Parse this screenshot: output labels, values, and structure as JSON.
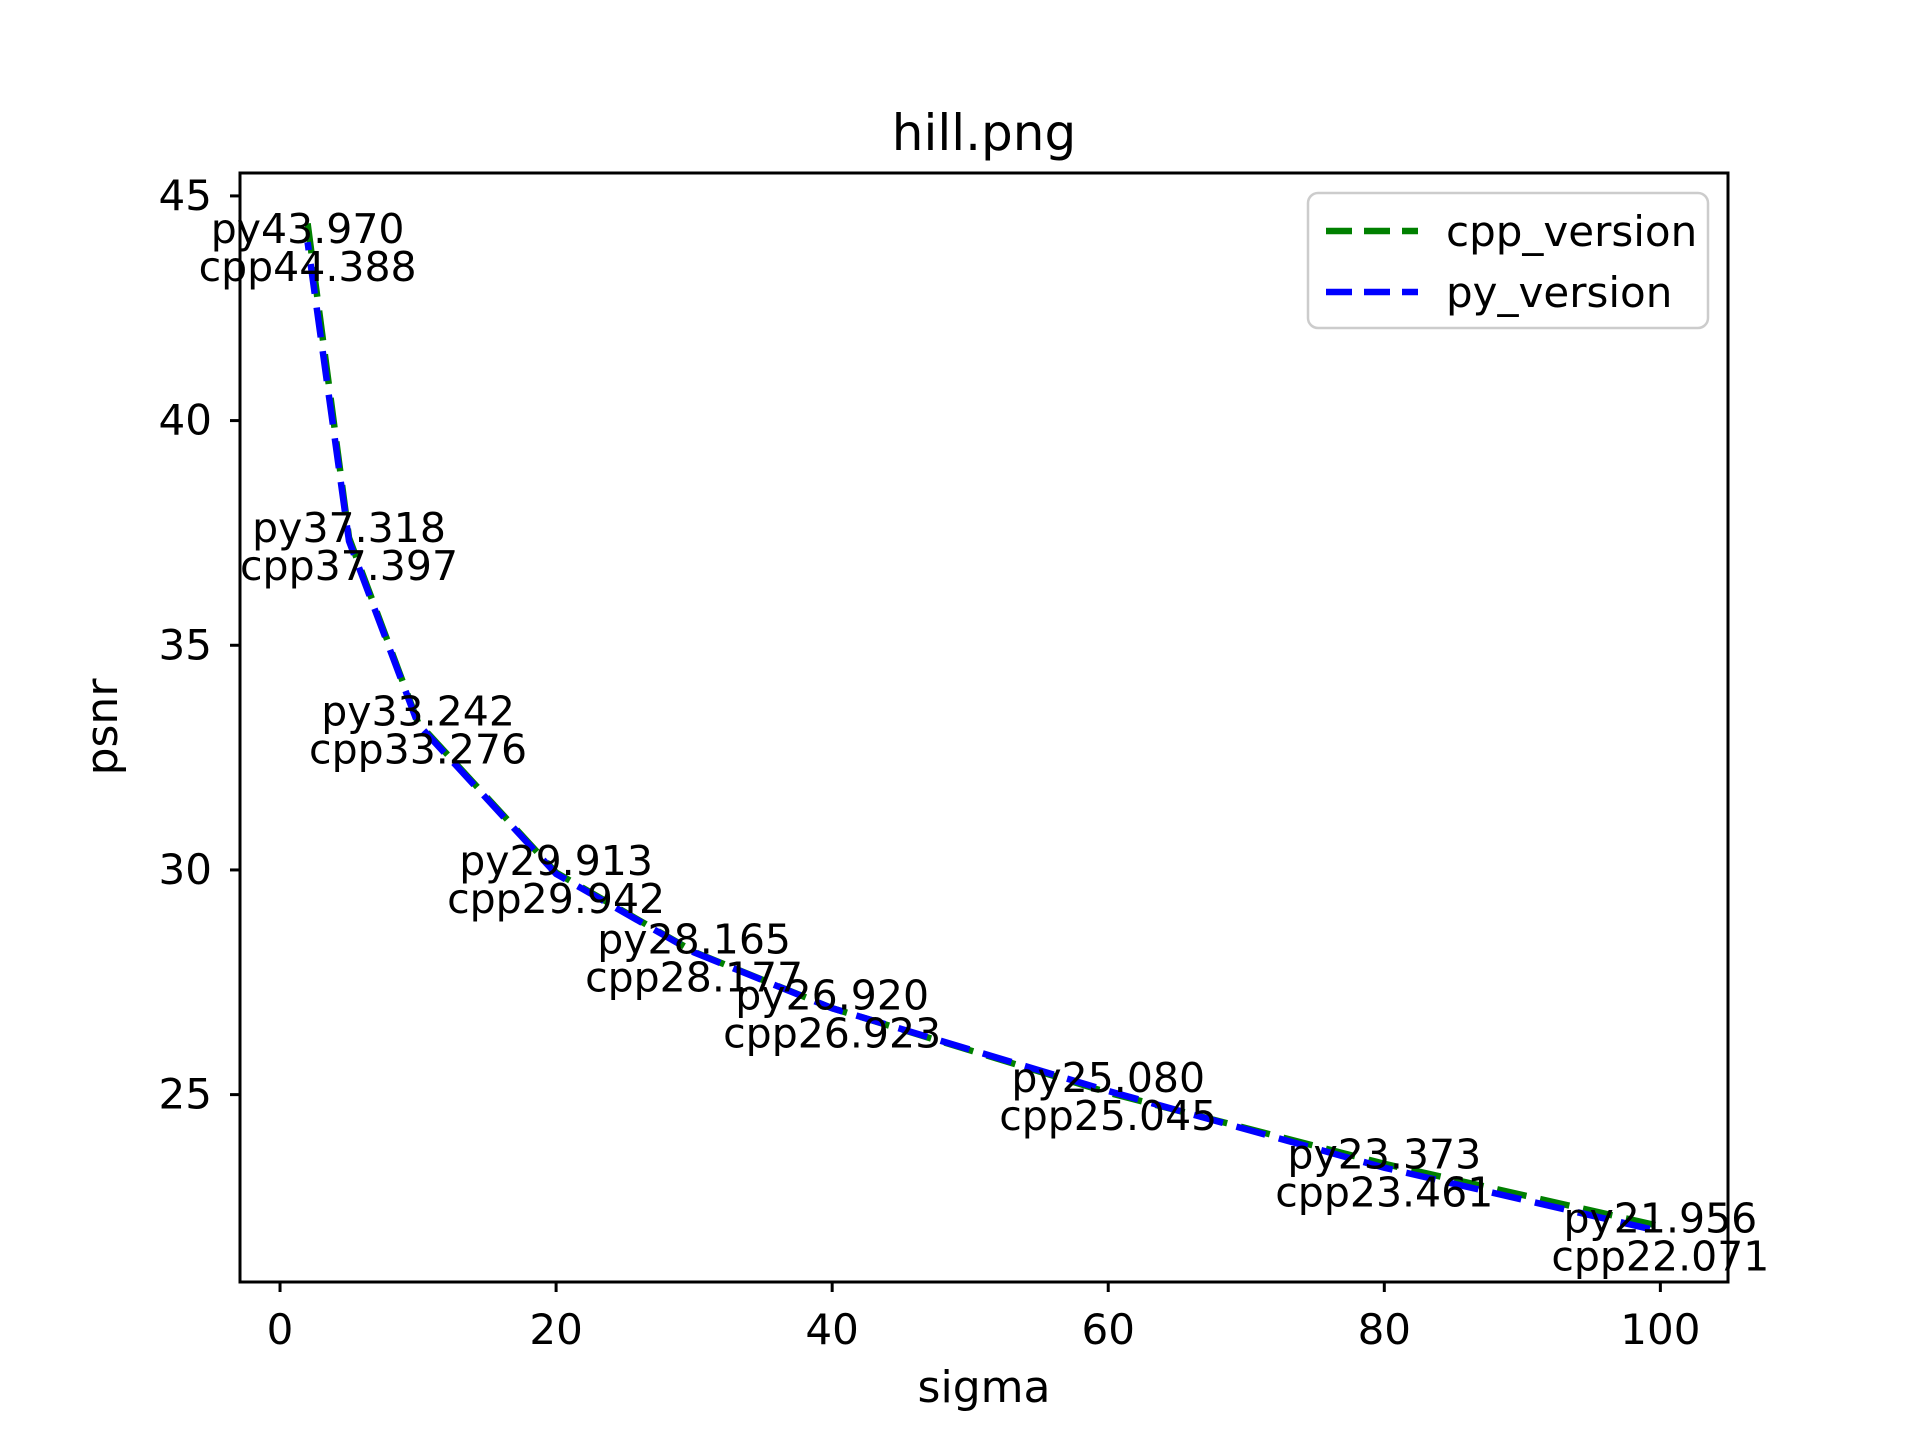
{
  "figure": {
    "background": "#ffffff"
  },
  "chart_data": {
    "type": "line",
    "title": "hill.png",
    "xlabel": "sigma",
    "ylabel": "psnr",
    "x": [
      2,
      5,
      10,
      20,
      30,
      40,
      60,
      80,
      100
    ],
    "series": [
      {
        "name": "cpp_version",
        "color": "#008000",
        "linestyle": "dashed",
        "values": [
          44.388,
          37.397,
          33.276,
          29.942,
          28.177,
          26.923,
          25.045,
          23.461,
          22.071
        ],
        "point_labels": [
          "cpp44.388",
          "cpp37.397",
          "cpp33.276",
          "cpp29.942",
          "cpp28.177",
          "cpp26.923",
          "cpp25.045",
          "cpp23.461",
          "cpp22.071"
        ]
      },
      {
        "name": "py_version",
        "color": "#0000ff",
        "linestyle": "dashed",
        "values": [
          43.97,
          37.318,
          33.242,
          29.913,
          28.165,
          26.92,
          25.08,
          23.373,
          21.956
        ],
        "point_labels": [
          "py43.970",
          "py37.318",
          "py33.242",
          "py29.913",
          "py28.165",
          "py26.920",
          "py25.080",
          "py23.373",
          "py21.956"
        ]
      }
    ],
    "xticks": [
      0,
      20,
      40,
      60,
      80,
      100
    ],
    "yticks": [
      25,
      30,
      35,
      40,
      45
    ],
    "xlim": [
      -2.9,
      104.9
    ],
    "ylim": [
      20.83,
      45.51
    ],
    "grid": false,
    "legend": {
      "position": "upper right",
      "entries": [
        "cpp_version",
        "py_version"
      ]
    }
  }
}
